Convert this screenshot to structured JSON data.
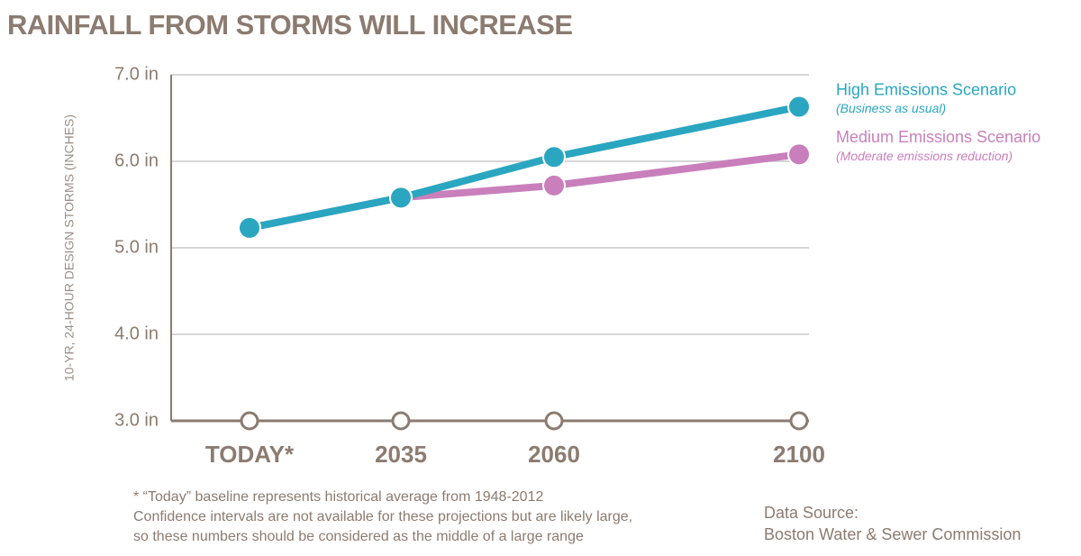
{
  "chart_data": {
    "type": "line",
    "title": "RAINFALL FROM STORMS WILL INCREASE",
    "y_label": "10-YR, 24-HOUR DESIGN STORMS (INCHES)",
    "categories": [
      "TODAY*",
      "2035",
      "2060",
      "2100"
    ],
    "series": [
      {
        "name": "Medium Emissions Scenario",
        "subtitle": "(Moderate emissions reduction)",
        "color": "#c97fbc",
        "values": [
          5.23,
          5.58,
          5.72,
          6.08
        ]
      },
      {
        "name": "High Emissions Scenario",
        "subtitle": "(Business as usual)",
        "color": "#2aa6c0",
        "values": [
          5.23,
          5.58,
          6.05,
          6.63
        ]
      }
    ],
    "ylim": [
      3,
      7
    ],
    "yticks": [
      {
        "value": 3,
        "label": "3.0 in"
      },
      {
        "value": 4,
        "label": "4.0 in"
      },
      {
        "value": 5,
        "label": "5.0 in"
      },
      {
        "value": 6,
        "label": "6.0 in"
      },
      {
        "value": 7,
        "label": "7.0 in"
      }
    ],
    "grid": true,
    "footnote": [
      "* “Today” baseline represents historical average from 1948-2012",
      "Confidence intervals are not available for these projections but are likely large,",
      "so these numbers should be considered as the middle of a large range"
    ],
    "source": [
      "Data Source:",
      "Boston Water & Sewer Commission"
    ]
  }
}
